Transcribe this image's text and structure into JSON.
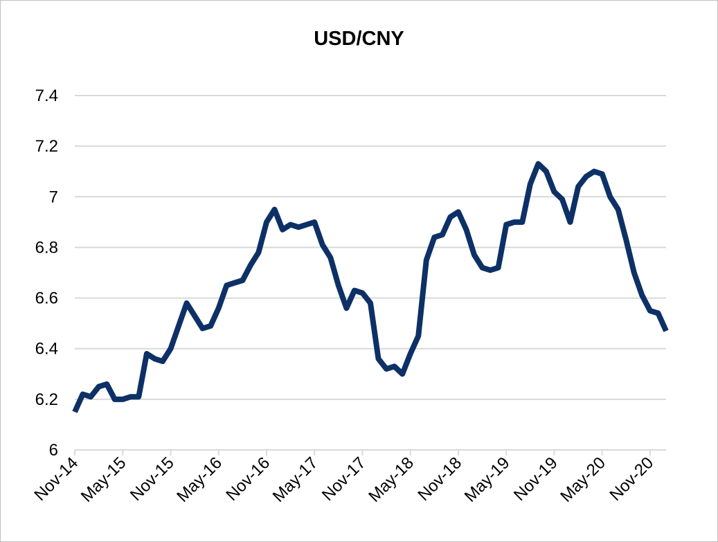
{
  "chart_data": {
    "type": "line",
    "title": "USD/CNY",
    "xlabel": "",
    "ylabel": "",
    "ylim": [
      6,
      7.4
    ],
    "yticks": [
      6,
      6.2,
      6.4,
      6.6,
      6.8,
      7,
      7.2,
      7.4
    ],
    "ytick_labels": [
      "6",
      "6.2",
      "6.4",
      "6.6",
      "6.8",
      "7",
      "7.2",
      "7.4"
    ],
    "xtick_labels": [
      "Nov-14",
      "May-15",
      "Nov-15",
      "May-16",
      "Nov-16",
      "May-17",
      "Nov-17",
      "May-18",
      "Nov-18",
      "May-19",
      "Nov-19",
      "May-20",
      "Nov-20"
    ],
    "xlim": [
      "2014-11",
      "2021-01"
    ],
    "grid": true,
    "legend": "none",
    "series": [
      {
        "color": "#0d3066",
        "x": [
          "2014-11",
          "2014-12",
          "2015-01",
          "2015-02",
          "2015-03",
          "2015-04",
          "2015-05",
          "2015-06",
          "2015-07",
          "2015-08",
          "2015-09",
          "2015-10",
          "2015-11",
          "2015-12",
          "2016-01",
          "2016-02",
          "2016-03",
          "2016-04",
          "2016-05",
          "2016-06",
          "2016-07",
          "2016-08",
          "2016-09",
          "2016-10",
          "2016-11",
          "2016-12",
          "2017-01",
          "2017-02",
          "2017-03",
          "2017-04",
          "2017-05",
          "2017-06",
          "2017-07",
          "2017-08",
          "2017-09",
          "2017-10",
          "2017-11",
          "2017-12",
          "2018-01",
          "2018-02",
          "2018-03",
          "2018-04",
          "2018-05",
          "2018-06",
          "2018-07",
          "2018-08",
          "2018-09",
          "2018-10",
          "2018-11",
          "2018-12",
          "2019-01",
          "2019-02",
          "2019-03",
          "2019-04",
          "2019-05",
          "2019-06",
          "2019-07",
          "2019-08",
          "2019-09",
          "2019-10",
          "2019-11",
          "2019-12",
          "2020-01",
          "2020-02",
          "2020-03",
          "2020-04",
          "2020-05",
          "2020-06",
          "2020-07",
          "2020-08",
          "2020-09",
          "2020-10",
          "2020-11",
          "2020-12",
          "2021-01"
        ],
        "values": [
          6.15,
          6.22,
          6.21,
          6.25,
          6.26,
          6.2,
          6.2,
          6.21,
          6.21,
          6.38,
          6.36,
          6.35,
          6.4,
          6.49,
          6.58,
          6.53,
          6.48,
          6.49,
          6.56,
          6.65,
          6.66,
          6.67,
          6.73,
          6.78,
          6.9,
          6.95,
          6.87,
          6.89,
          6.88,
          6.89,
          6.9,
          6.81,
          6.76,
          6.65,
          6.56,
          6.63,
          6.62,
          6.58,
          6.36,
          6.32,
          6.33,
          6.3,
          6.38,
          6.45,
          6.75,
          6.84,
          6.85,
          6.92,
          6.94,
          6.87,
          6.77,
          6.72,
          6.71,
          6.72,
          6.89,
          6.9,
          6.9,
          7.05,
          7.13,
          7.1,
          7.02,
          6.99,
          6.9,
          7.04,
          7.08,
          7.1,
          7.09,
          7.0,
          6.95,
          6.83,
          6.7,
          6.61,
          6.55,
          6.54,
          6.47
        ]
      }
    ]
  }
}
